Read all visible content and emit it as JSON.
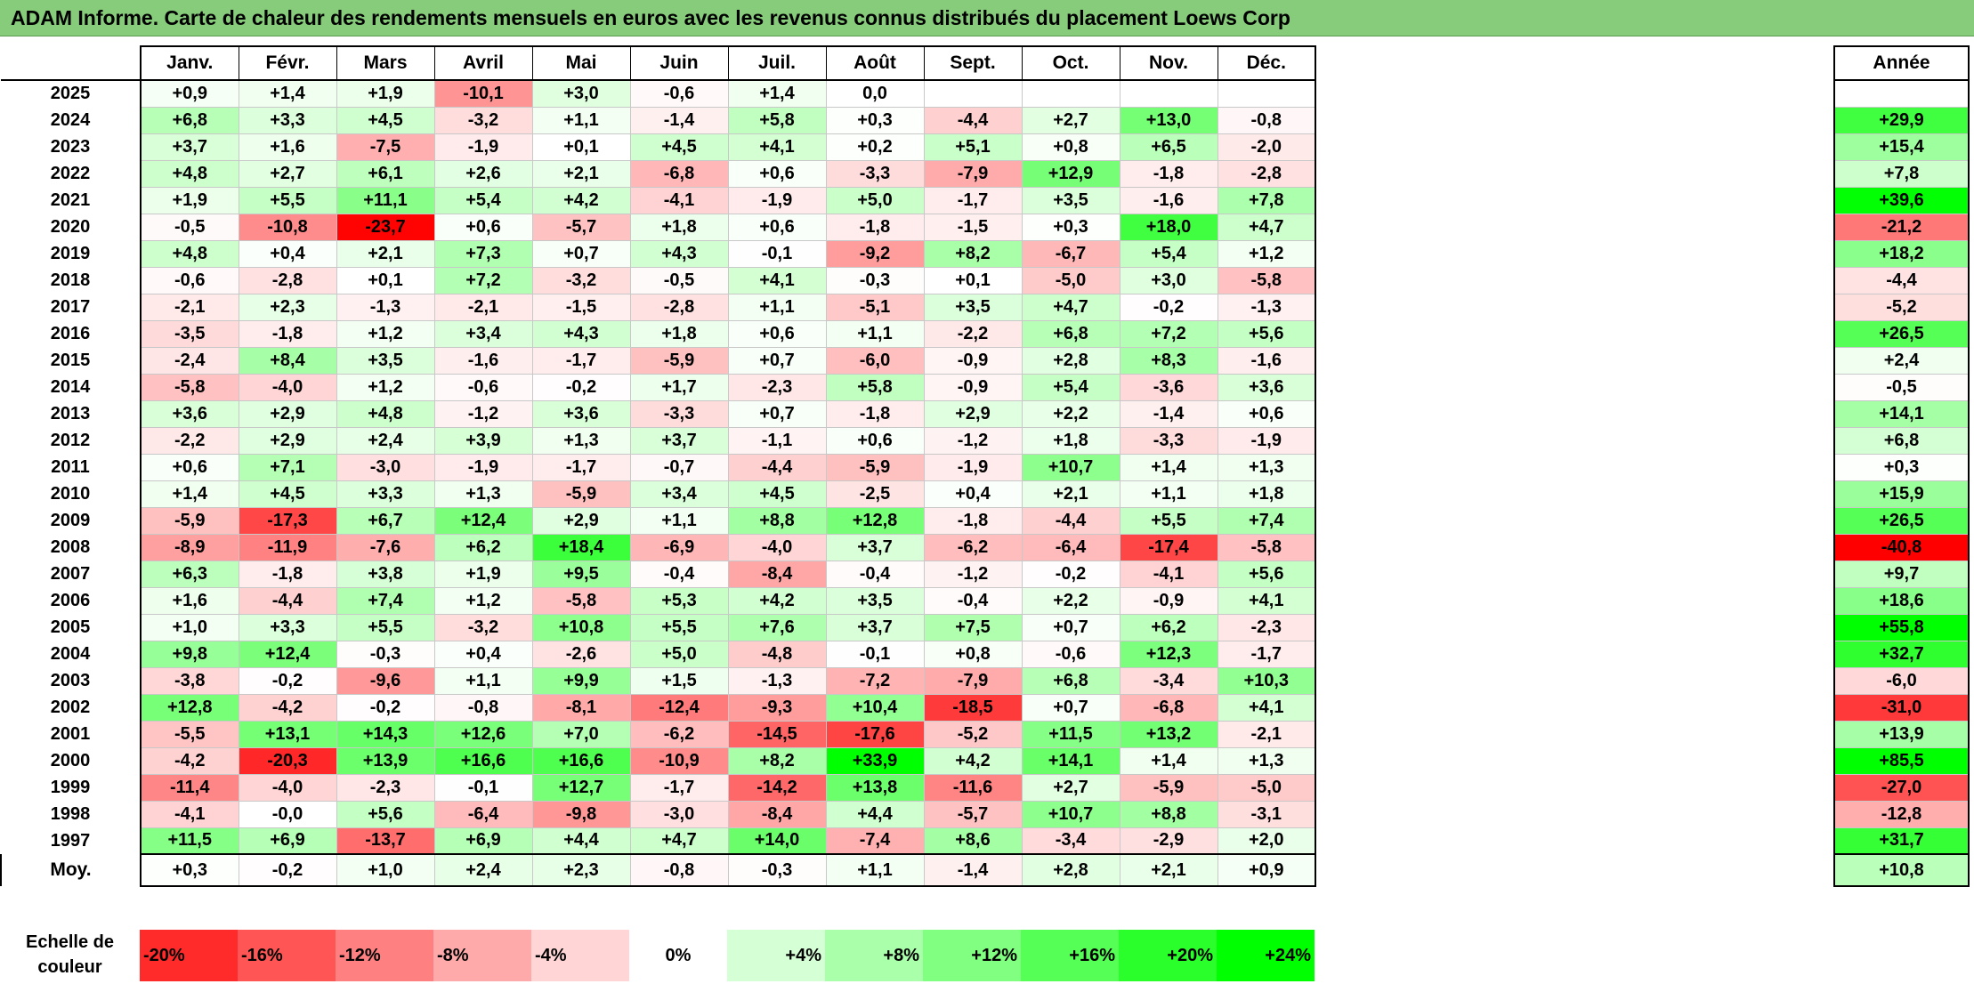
{
  "title": "ADAM Informe. Carte de chaleur des rendements mensuels en euros avec les revenus connus distribués du placement Loews Corp",
  "chart_data": {
    "type": "heatmap",
    "title": "ADAM Informe. Carte de chaleur des rendements mensuels en euros avec les revenus connus distribués du placement Loews Corp",
    "months": [
      "Janv.",
      "Févr.",
      "Mars",
      "Avril",
      "Mai",
      "Juin",
      "Juil.",
      "Août",
      "Sept.",
      "Oct.",
      "Nov.",
      "Déc."
    ],
    "year_header": "Année",
    "rows": [
      {
        "year": "2025",
        "values": [
          "+0,9",
          "+1,4",
          "+1,9",
          "-10,1",
          "+3,0",
          "-0,6",
          "+1,4",
          "0,0",
          "",
          "",
          "",
          ""
        ],
        "annual": ""
      },
      {
        "year": "2024",
        "values": [
          "+6,8",
          "+3,3",
          "+4,5",
          "-3,2",
          "+1,1",
          "-1,4",
          "+5,8",
          "+0,3",
          "-4,4",
          "+2,7",
          "+13,0",
          "-0,8"
        ],
        "annual": "+29,9"
      },
      {
        "year": "2023",
        "values": [
          "+3,7",
          "+1,6",
          "-7,5",
          "-1,9",
          "+0,1",
          "+4,5",
          "+4,1",
          "+0,2",
          "+5,1",
          "+0,8",
          "+6,5",
          "-2,0"
        ],
        "annual": "+15,4"
      },
      {
        "year": "2022",
        "values": [
          "+4,8",
          "+2,7",
          "+6,1",
          "+2,6",
          "+2,1",
          "-6,8",
          "+0,6",
          "-3,3",
          "-7,9",
          "+12,9",
          "-1,8",
          "-2,8"
        ],
        "annual": "+7,8"
      },
      {
        "year": "2021",
        "values": [
          "+1,9",
          "+5,5",
          "+11,1",
          "+5,4",
          "+4,2",
          "-4,1",
          "-1,9",
          "+5,0",
          "-1,7",
          "+3,5",
          "-1,6",
          "+7,8"
        ],
        "annual": "+39,6"
      },
      {
        "year": "2020",
        "values": [
          "-0,5",
          "-10,8",
          "-23,7",
          "+0,6",
          "-5,7",
          "+1,8",
          "+0,6",
          "-1,8",
          "-1,5",
          "+0,3",
          "+18,0",
          "+4,7"
        ],
        "annual": "-21,2"
      },
      {
        "year": "2019",
        "values": [
          "+4,8",
          "+0,4",
          "+2,1",
          "+7,3",
          "+0,7",
          "+4,3",
          "-0,1",
          "-9,2",
          "+8,2",
          "-6,7",
          "+5,4",
          "+1,2"
        ],
        "annual": "+18,2"
      },
      {
        "year": "2018",
        "values": [
          "-0,6",
          "-2,8",
          "+0,1",
          "+7,2",
          "-3,2",
          "-0,5",
          "+4,1",
          "-0,3",
          "+0,1",
          "-5,0",
          "+3,0",
          "-5,8"
        ],
        "annual": "-4,4"
      },
      {
        "year": "2017",
        "values": [
          "-2,1",
          "+2,3",
          "-1,3",
          "-2,1",
          "-1,5",
          "-2,8",
          "+1,1",
          "-5,1",
          "+3,5",
          "+4,7",
          "-0,2",
          "-1,3"
        ],
        "annual": "-5,2"
      },
      {
        "year": "2016",
        "values": [
          "-3,5",
          "-1,8",
          "+1,2",
          "+3,4",
          "+4,3",
          "+1,8",
          "+0,6",
          "+1,1",
          "-2,2",
          "+6,8",
          "+7,2",
          "+5,6"
        ],
        "annual": "+26,5"
      },
      {
        "year": "2015",
        "values": [
          "-2,4",
          "+8,4",
          "+3,5",
          "-1,6",
          "-1,7",
          "-5,9",
          "+0,7",
          "-6,0",
          "-0,9",
          "+2,8",
          "+8,3",
          "-1,6"
        ],
        "annual": "+2,4"
      },
      {
        "year": "2014",
        "values": [
          "-5,8",
          "-4,0",
          "+1,2",
          "-0,6",
          "-0,2",
          "+1,7",
          "-2,3",
          "+5,8",
          "-0,9",
          "+5,4",
          "-3,6",
          "+3,6"
        ],
        "annual": "-0,5"
      },
      {
        "year": "2013",
        "values": [
          "+3,6",
          "+2,9",
          "+4,8",
          "-1,2",
          "+3,6",
          "-3,3",
          "+0,7",
          "-1,8",
          "+2,9",
          "+2,2",
          "-1,4",
          "+0,6"
        ],
        "annual": "+14,1"
      },
      {
        "year": "2012",
        "values": [
          "-2,2",
          "+2,9",
          "+2,4",
          "+3,9",
          "+1,3",
          "+3,7",
          "-1,1",
          "+0,6",
          "-1,2",
          "+1,8",
          "-3,3",
          "-1,9"
        ],
        "annual": "+6,8"
      },
      {
        "year": "2011",
        "values": [
          "+0,6",
          "+7,1",
          "-3,0",
          "-1,9",
          "-1,7",
          "-0,7",
          "-4,4",
          "-5,9",
          "-1,9",
          "+10,7",
          "+1,4",
          "+1,3"
        ],
        "annual": "+0,3"
      },
      {
        "year": "2010",
        "values": [
          "+1,4",
          "+4,5",
          "+3,3",
          "+1,3",
          "-5,9",
          "+3,4",
          "+4,5",
          "-2,5",
          "+0,4",
          "+2,1",
          "+1,1",
          "+1,8"
        ],
        "annual": "+15,9"
      },
      {
        "year": "2009",
        "values": [
          "-5,9",
          "-17,3",
          "+6,7",
          "+12,4",
          "+2,9",
          "+1,1",
          "+8,8",
          "+12,8",
          "-1,8",
          "-4,4",
          "+5,5",
          "+7,4"
        ],
        "annual": "+26,5"
      },
      {
        "year": "2008",
        "values": [
          "-8,9",
          "-11,9",
          "-7,6",
          "+6,2",
          "+18,4",
          "-6,9",
          "-4,0",
          "+3,7",
          "-6,2",
          "-6,4",
          "-17,4",
          "-5,8"
        ],
        "annual": "-40,8"
      },
      {
        "year": "2007",
        "values": [
          "+6,3",
          "-1,8",
          "+3,8",
          "+1,9",
          "+9,5",
          "-0,4",
          "-8,4",
          "-0,4",
          "-1,2",
          "-0,2",
          "-4,1",
          "+5,6"
        ],
        "annual": "+9,7"
      },
      {
        "year": "2006",
        "values": [
          "+1,6",
          "-4,4",
          "+7,4",
          "+1,2",
          "-5,8",
          "+5,3",
          "+4,2",
          "+3,5",
          "-0,4",
          "+2,2",
          "-0,9",
          "+4,1"
        ],
        "annual": "+18,6"
      },
      {
        "year": "2005",
        "values": [
          "+1,0",
          "+3,3",
          "+5,5",
          "-3,2",
          "+10,8",
          "+5,5",
          "+7,6",
          "+3,7",
          "+7,5",
          "+0,7",
          "+6,2",
          "-2,3"
        ],
        "annual": "+55,8"
      },
      {
        "year": "2004",
        "values": [
          "+9,8",
          "+12,4",
          "-0,3",
          "+0,4",
          "-2,6",
          "+5,0",
          "-4,8",
          "-0,1",
          "+0,8",
          "-0,6",
          "+12,3",
          "-1,7"
        ],
        "annual": "+32,7"
      },
      {
        "year": "2003",
        "values": [
          "-3,8",
          "-0,2",
          "-9,6",
          "+1,1",
          "+9,9",
          "+1,5",
          "-1,3",
          "-7,2",
          "-7,9",
          "+6,8",
          "-3,4",
          "+10,3"
        ],
        "annual": "-6,0"
      },
      {
        "year": "2002",
        "values": [
          "+12,8",
          "-4,2",
          "-0,2",
          "-0,8",
          "-8,1",
          "-12,4",
          "-9,3",
          "+10,4",
          "-18,5",
          "+0,7",
          "-6,8",
          "+4,1"
        ],
        "annual": "-31,0"
      },
      {
        "year": "2001",
        "values": [
          "-5,5",
          "+13,1",
          "+14,3",
          "+12,6",
          "+7,0",
          "-6,2",
          "-14,5",
          "-17,6",
          "-5,2",
          "+11,5",
          "+13,2",
          "-2,1"
        ],
        "annual": "+13,9"
      },
      {
        "year": "2000",
        "values": [
          "-4,2",
          "-20,3",
          "+13,9",
          "+16,6",
          "+16,6",
          "-10,9",
          "+8,2",
          "+33,9",
          "+4,2",
          "+14,1",
          "+1,4",
          "+1,3"
        ],
        "annual": "+85,5"
      },
      {
        "year": "1999",
        "values": [
          "-11,4",
          "-4,0",
          "-2,3",
          "-0,1",
          "+12,7",
          "-1,7",
          "-14,2",
          "+13,8",
          "-11,6",
          "+2,7",
          "-5,9",
          "-5,0"
        ],
        "annual": "-27,0"
      },
      {
        "year": "1998",
        "values": [
          "-4,1",
          "-0,0",
          "+5,6",
          "-6,4",
          "-9,8",
          "-3,0",
          "-8,4",
          "+4,4",
          "-5,7",
          "+10,7",
          "+8,8",
          "-3,1"
        ],
        "annual": "-12,8"
      },
      {
        "year": "1997",
        "values": [
          "+11,5",
          "+6,9",
          "-13,7",
          "+6,9",
          "+4,4",
          "+4,7",
          "+14,0",
          "-7,4",
          "+8,6",
          "-3,4",
          "-2,9",
          "+2,0"
        ],
        "annual": "+31,7"
      }
    ],
    "average": {
      "label": "Moy.",
      "values": [
        "+0,3",
        "-0,2",
        "+1,0",
        "+2,4",
        "+2,3",
        "-0,8",
        "-0,3",
        "+1,1",
        "-1,4",
        "+2,8",
        "+2,1",
        "+0,9"
      ],
      "annual": "+10,8"
    },
    "color_scale": {
      "label": "Echelle de couleur",
      "stops": [
        "-20%",
        "-16%",
        "-12%",
        "-8%",
        "-4%",
        "0%",
        "+4%",
        "+8%",
        "+12%",
        "+16%",
        "+20%",
        "+24%"
      ],
      "negative_color": "#ff0000",
      "neutral_color": "#ffffff",
      "positive_color": "#00ff00"
    }
  }
}
